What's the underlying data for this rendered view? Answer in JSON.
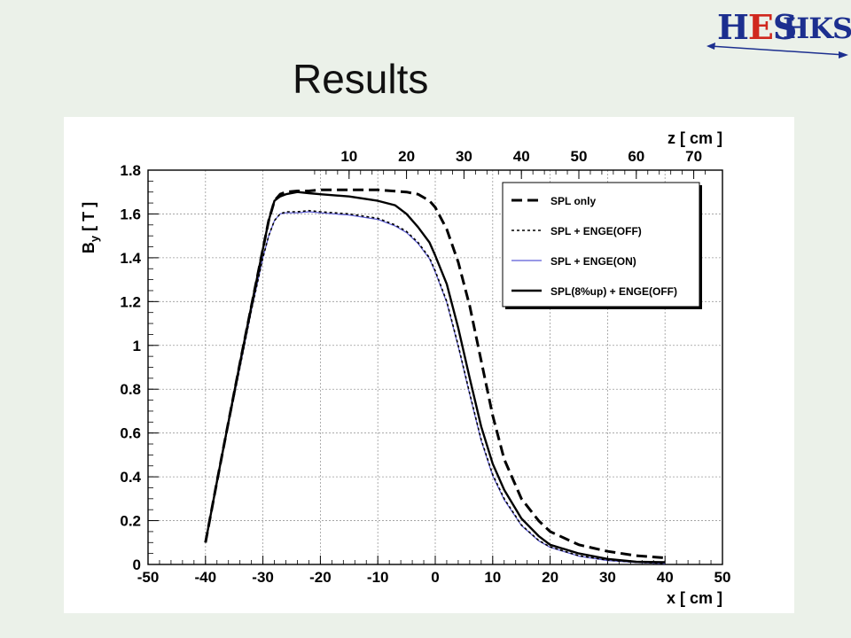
{
  "slide": {
    "title": "Results"
  },
  "logo": {
    "part1": "H",
    "part2": "E",
    "part3": "S",
    "part4": "HKS"
  },
  "colors": {
    "background": "#ebf1e9",
    "logo_blue": "#1c2f8f",
    "logo_red": "#d0281e",
    "series_blue": "#5b5bd6"
  },
  "chart_data": {
    "type": "line",
    "x_axis": {
      "label": "x [ cm ]",
      "range": [
        -50,
        50
      ],
      "ticks": [
        -50,
        -40,
        -30,
        -20,
        -10,
        0,
        10,
        20,
        30,
        40,
        50
      ]
    },
    "top_axis": {
      "label": "z [ cm ]",
      "ticks": [
        10,
        20,
        30,
        40,
        50,
        60,
        70
      ]
    },
    "y_axis": {
      "label": "B",
      "label_sub": "y",
      "label_suffix": "[ T ]",
      "range": [
        0,
        1.8
      ],
      "ticks": [
        "0",
        "0.2",
        "0.4",
        "0.6",
        "0.8",
        "1",
        "1.2",
        "1.4",
        "1.6",
        "1.8"
      ]
    },
    "grid": true,
    "legend_position": "top-right",
    "series": [
      {
        "name": "SPL only",
        "style": "dashed",
        "x": [
          -40,
          -38,
          -36,
          -34,
          -32,
          -30,
          -29,
          -28,
          -27,
          -26,
          -24,
          -22,
          -20,
          -15,
          -10,
          -5,
          -3,
          -1,
          0,
          2,
          4,
          6,
          8,
          10,
          12,
          15,
          18,
          20,
          25,
          30,
          35,
          40
        ],
        "y": [
          0.1,
          0.38,
          0.65,
          0.92,
          1.18,
          1.44,
          1.57,
          1.66,
          1.69,
          1.7,
          1.705,
          1.705,
          1.71,
          1.71,
          1.71,
          1.7,
          1.69,
          1.66,
          1.63,
          1.53,
          1.38,
          1.18,
          0.93,
          0.68,
          0.48,
          0.3,
          0.2,
          0.15,
          0.09,
          0.06,
          0.04,
          0.03
        ]
      },
      {
        "name": "SPL + ENGE(OFF)",
        "style": "dotted",
        "x": [
          -40,
          -38,
          -36,
          -34,
          -32,
          -30,
          -29,
          -28,
          -27,
          -26,
          -24,
          -22,
          -20,
          -15,
          -10,
          -7,
          -5,
          -3,
          -1,
          0,
          2,
          4,
          6,
          8,
          10,
          12,
          15,
          18,
          20,
          25,
          30,
          35,
          40
        ],
        "y": [
          0.1,
          0.38,
          0.64,
          0.9,
          1.16,
          1.4,
          1.5,
          1.57,
          1.6,
          1.61,
          1.61,
          1.615,
          1.61,
          1.6,
          1.58,
          1.55,
          1.52,
          1.47,
          1.4,
          1.34,
          1.2,
          1.0,
          0.78,
          0.57,
          0.41,
          0.3,
          0.18,
          0.11,
          0.08,
          0.04,
          0.02,
          0.01,
          0.005
        ]
      },
      {
        "name": "SPL + ENGE(ON)",
        "style": "solid-blue",
        "x": [
          -40,
          -38,
          -36,
          -34,
          -32,
          -30,
          -29,
          -28,
          -27,
          -26,
          -24,
          -22,
          -20,
          -15,
          -10,
          -7,
          -5,
          -3,
          -1,
          0,
          2,
          4,
          6,
          8,
          10,
          12,
          15,
          18,
          20,
          25,
          30,
          35,
          40
        ],
        "y": [
          0.1,
          0.38,
          0.64,
          0.9,
          1.16,
          1.4,
          1.5,
          1.57,
          1.6,
          1.605,
          1.605,
          1.61,
          1.605,
          1.595,
          1.575,
          1.545,
          1.515,
          1.465,
          1.395,
          1.335,
          1.195,
          0.995,
          0.775,
          0.565,
          0.405,
          0.295,
          0.178,
          0.108,
          0.078,
          0.038,
          0.018,
          0.009,
          0.004
        ]
      },
      {
        "name": "SPL(8%up) + ENGE(OFF)",
        "style": "solid",
        "x": [
          -40,
          -38,
          -36,
          -34,
          -32,
          -30,
          -29,
          -28,
          -27,
          -26,
          -24,
          -22,
          -20,
          -15,
          -10,
          -7,
          -5,
          -3,
          -1,
          0,
          2,
          4,
          6,
          8,
          10,
          12,
          15,
          18,
          20,
          25,
          30,
          35,
          40
        ],
        "y": [
          0.1,
          0.38,
          0.65,
          0.92,
          1.18,
          1.44,
          1.57,
          1.66,
          1.68,
          1.69,
          1.7,
          1.695,
          1.69,
          1.68,
          1.66,
          1.64,
          1.6,
          1.54,
          1.47,
          1.41,
          1.28,
          1.08,
          0.85,
          0.63,
          0.46,
          0.34,
          0.21,
          0.13,
          0.09,
          0.05,
          0.025,
          0.012,
          0.01
        ]
      }
    ]
  }
}
